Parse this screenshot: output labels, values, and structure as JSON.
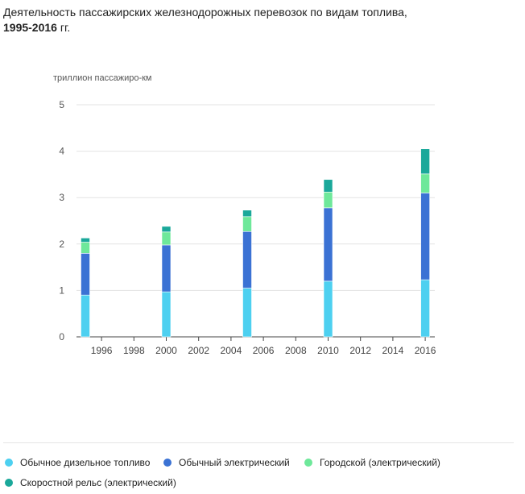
{
  "title": {
    "main": "Деятельность пассажирских железнодорожных перевозок по видам топлива, ",
    "years": "1995-2016",
    "suffix": " гг."
  },
  "chart_data": {
    "type": "bar",
    "stacked": true,
    "ylabel": "триллион пассажиро-км",
    "ylim": [
      0,
      5
    ],
    "yticks": [
      0,
      1,
      2,
      3,
      4,
      5
    ],
    "xlim": [
      1995,
      2016
    ],
    "xticks": [
      1996,
      1998,
      2000,
      2002,
      2004,
      2006,
      2008,
      2010,
      2012,
      2014,
      2016
    ],
    "x": [
      1995,
      2000,
      2005,
      2010,
      2016
    ],
    "series": [
      {
        "name": "Обычное дизельное топливо",
        "color": "#4dd0f0",
        "values": [
          0.9,
          0.97,
          1.05,
          1.2,
          1.23
        ]
      },
      {
        "name": "Обычный электрический",
        "color": "#3b72d4",
        "values": [
          0.9,
          1.01,
          1.22,
          1.58,
          1.87
        ]
      },
      {
        "name": "Городской (электрический)",
        "color": "#6ee89a",
        "values": [
          0.24,
          0.28,
          0.32,
          0.34,
          0.41
        ]
      },
      {
        "name": "Скоростной рельс (электрический)",
        "color": "#1aa89a",
        "values": [
          0.09,
          0.12,
          0.14,
          0.27,
          0.54
        ]
      }
    ],
    "grid": true,
    "legend_position": "bottom"
  }
}
